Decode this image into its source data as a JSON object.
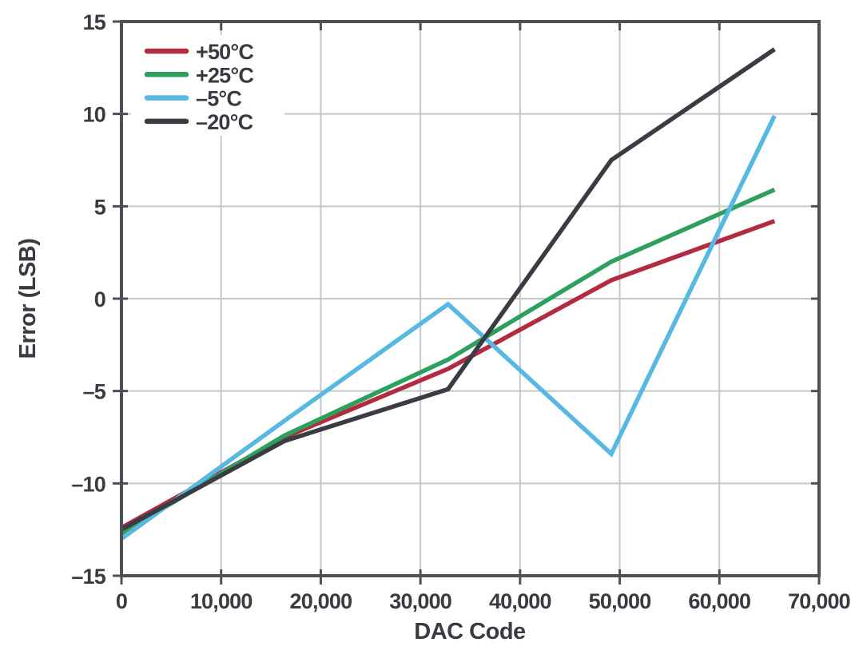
{
  "chart_data": {
    "type": "line",
    "title": "",
    "xlabel": "DAC Code",
    "ylabel": "Error (LSB)",
    "xlim": [
      0,
      70000
    ],
    "ylim": [
      -15,
      15
    ],
    "grid": true,
    "legend_position": "top-left",
    "x_ticks": {
      "values": [
        0,
        10000,
        20000,
        30000,
        40000,
        50000,
        60000,
        70000
      ],
      "labels": [
        "0",
        "10,000",
        "20,000",
        "30,000",
        "40,000",
        "50,000",
        "60,000",
        "70,000"
      ]
    },
    "y_ticks": {
      "values": [
        15,
        10,
        5,
        0,
        -5,
        -10,
        -15
      ],
      "labels": [
        "15",
        "10",
        "5",
        "0",
        "–5",
        "–10",
        "–15"
      ]
    },
    "x": [
      0,
      16384,
      32768,
      49152,
      65535
    ],
    "series": [
      {
        "id": "plus-50c",
        "name": "+50°C",
        "color": "#b22b40",
        "values": [
          -12.4,
          -7.5,
          -3.8,
          1.0,
          4.2
        ]
      },
      {
        "id": "plus-25c",
        "name": "+25°C",
        "color": "#2da05e",
        "values": [
          -12.7,
          -7.4,
          -3.3,
          2.0,
          5.9
        ]
      },
      {
        "id": "minus-5c",
        "name": "–5°C",
        "color": "#57b8e2",
        "values": [
          -13.0,
          -6.6,
          -0.3,
          -8.4,
          9.9
        ]
      },
      {
        "id": "minus-20c",
        "name": "–20°C",
        "color": "#3a3c44",
        "values": [
          -12.5,
          -7.7,
          -4.9,
          7.5,
          13.5
        ]
      }
    ],
    "colors": {
      "frame": "#4e5057",
      "grid": "#c4c7ca",
      "text": "#383b42",
      "background": "#ffffff"
    }
  }
}
